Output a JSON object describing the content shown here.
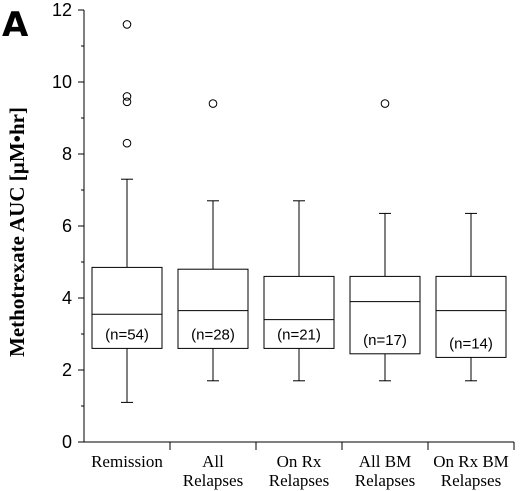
{
  "chart_data": {
    "type": "box",
    "panel_label": "A",
    "ylabel": "Methotrexate AUC [µM•hr]",
    "ylim": [
      0,
      12
    ],
    "yticks": [
      "0",
      "2",
      "4",
      "6",
      "8",
      "10",
      "12"
    ],
    "grid": false,
    "groups": [
      {
        "label_lines": [
          "Remission"
        ],
        "n_label": "(n=54)",
        "min": 1.1,
        "q1": 2.6,
        "median": 3.55,
        "q3": 4.85,
        "max": 7.3,
        "outliers": [
          8.3,
          9.45,
          9.6,
          11.6
        ]
      },
      {
        "label_lines": [
          "All",
          "Relapses"
        ],
        "n_label": "(n=28)",
        "min": 1.7,
        "q1": 2.6,
        "median": 3.65,
        "q3": 4.8,
        "max": 6.7,
        "outliers": [
          9.4
        ]
      },
      {
        "label_lines": [
          "On Rx",
          "Relapses"
        ],
        "n_label": "(n=21)",
        "min": 1.7,
        "q1": 2.6,
        "median": 3.4,
        "q3": 4.6,
        "max": 6.7,
        "outliers": []
      },
      {
        "label_lines": [
          "All BM",
          "Relapses"
        ],
        "n_label": "(n=17)",
        "min": 1.7,
        "q1": 2.45,
        "median": 3.9,
        "q3": 4.6,
        "max": 6.35,
        "outliers": [
          9.4
        ]
      },
      {
        "label_lines": [
          "On Rx BM",
          "Relapses"
        ],
        "n_label": "(n=14)",
        "min": 1.7,
        "q1": 2.35,
        "median": 3.65,
        "q3": 4.6,
        "max": 6.35,
        "outliers": []
      }
    ]
  }
}
